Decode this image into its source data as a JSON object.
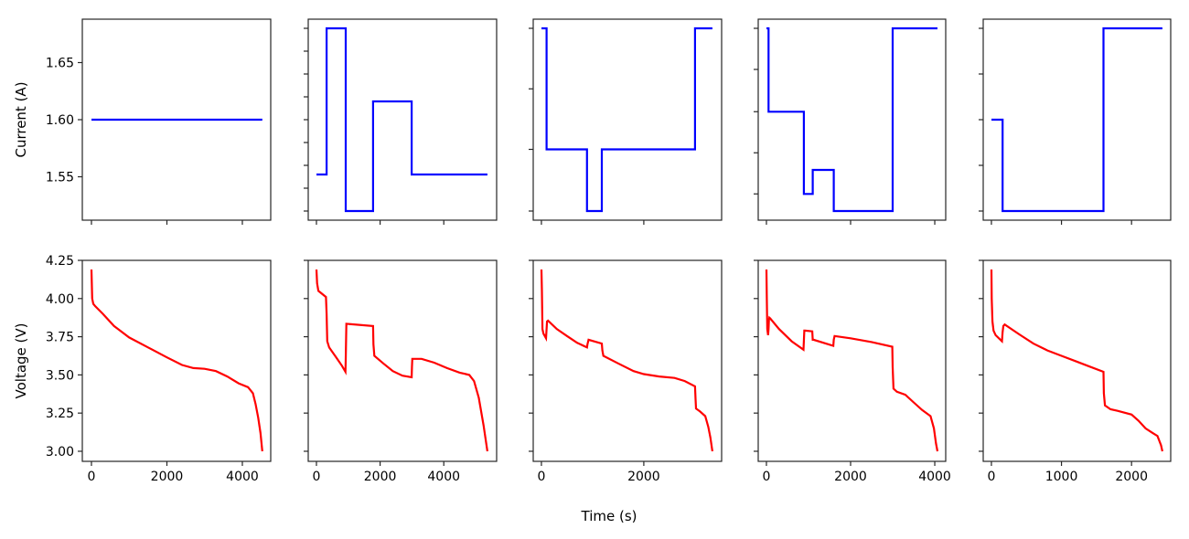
{
  "figure": {
    "xlabel": "Time (s)",
    "row_labels": [
      "Current (A)",
      "Voltage (V)"
    ],
    "colors": {
      "current": "#0000ff",
      "voltage": "#ff0000",
      "axes": "#262626",
      "background": "#ffffff"
    }
  },
  "chart_data": [
    {
      "type": "line",
      "panel": "current-1",
      "title": "",
      "xlabel": "",
      "ylabel": "Current (A)",
      "xlim": [
        -242,
        4752
      ],
      "ylim": [
        1.512,
        1.688
      ],
      "xticks": [
        0,
        2000,
        4000
      ],
      "xtick_labels": [
        "",
        "",
        ""
      ],
      "yticks": [
        1.55,
        1.6,
        1.65
      ],
      "ytick_labels": [
        "1.55",
        "1.60",
        "1.65"
      ],
      "series": [
        {
          "name": "Current",
          "color": "#0000ff",
          "step": true,
          "x": [
            0,
            4530
          ],
          "y": [
            1.6,
            1.6
          ]
        }
      ]
    },
    {
      "type": "line",
      "panel": "current-2",
      "title": "",
      "xlabel": "",
      "ylabel": "",
      "xlim": [
        -258,
        5660
      ],
      "ylim": [
        1.512,
        1.688
      ],
      "xticks": [
        0,
        2000,
        4000
      ],
      "xtick_labels": [
        "",
        "",
        ""
      ],
      "yticks": [
        1.52,
        1.54,
        1.56,
        1.58,
        1.6,
        1.62,
        1.64,
        1.66,
        1.68
      ],
      "ytick_labels": [
        "",
        "",
        "",
        "",
        "",
        "",
        "",
        "",
        ""
      ],
      "series": [
        {
          "name": "Current",
          "color": "#0000ff",
          "step": true,
          "x": [
            0,
            320,
            320,
            920,
            920,
            1780,
            1780,
            2990,
            2990,
            5370
          ],
          "y": [
            1.552,
            1.552,
            1.68,
            1.68,
            1.52,
            1.52,
            1.616,
            1.616,
            1.552,
            1.552
          ]
        }
      ]
    },
    {
      "type": "line",
      "panel": "current-3",
      "title": "",
      "xlabel": "",
      "ylabel": "",
      "xlim": [
        -160,
        3520
      ],
      "ylim": [
        1.512,
        1.688
      ],
      "xticks": [
        0,
        2000
      ],
      "xtick_labels": [
        "",
        ""
      ],
      "yticks": [
        1.52,
        1.574,
        1.627,
        1.68
      ],
      "ytick_labels": [
        "",
        "",
        "",
        ""
      ],
      "series": [
        {
          "name": "Current",
          "color": "#0000ff",
          "step": true,
          "x": [
            0,
            100,
            100,
            890,
            890,
            1180,
            1180,
            3000,
            3000,
            3340
          ],
          "y": [
            1.68,
            1.68,
            1.574,
            1.574,
            1.52,
            1.52,
            1.574,
            1.574,
            1.68,
            1.68
          ]
        }
      ]
    },
    {
      "type": "line",
      "panel": "current-4",
      "title": "",
      "xlabel": "",
      "ylabel": "",
      "xlim": [
        -195,
        4260
      ],
      "ylim": [
        1.512,
        1.688
      ],
      "xticks": [
        0,
        2000,
        4000
      ],
      "xtick_labels": [
        "",
        "",
        ""
      ],
      "yticks": [
        1.535,
        1.571,
        1.607,
        1.644,
        1.68
      ],
      "ytick_labels": [
        "",
        "",
        "",
        "",
        ""
      ],
      "series": [
        {
          "name": "Current",
          "color": "#0000ff",
          "step": true,
          "x": [
            0,
            50,
            50,
            890,
            890,
            1100,
            1100,
            1600,
            1600,
            3000,
            3000,
            4065
          ],
          "y": [
            1.68,
            1.68,
            1.607,
            1.607,
            1.535,
            1.535,
            1.556,
            1.556,
            1.52,
            1.52,
            1.68,
            1.68
          ]
        }
      ]
    },
    {
      "type": "line",
      "panel": "current-5",
      "title": "",
      "xlabel": "",
      "ylabel": "",
      "xlim": [
        -117,
        2559
      ],
      "ylim": [
        1.512,
        1.688
      ],
      "xticks": [
        0,
        1000,
        2000
      ],
      "xtick_labels": [
        "",
        "",
        ""
      ],
      "yticks": [
        1.52,
        1.56,
        1.6,
        1.64,
        1.68
      ],
      "ytick_labels": [
        "",
        "",
        "",
        "",
        ""
      ],
      "series": [
        {
          "name": "Current",
          "color": "#0000ff",
          "step": true,
          "x": [
            0,
            160,
            160,
            1600,
            1600,
            2440
          ],
          "y": [
            1.6,
            1.6,
            1.52,
            1.52,
            1.68,
            1.68
          ]
        }
      ]
    },
    {
      "type": "line",
      "panel": "voltage-1",
      "title": "",
      "xlabel": "",
      "ylabel": "Voltage (V)",
      "xlim": [
        -242,
        4752
      ],
      "ylim": [
        2.934,
        4.25
      ],
      "xticks": [
        0,
        2000,
        4000
      ],
      "xtick_labels": [
        "0",
        "2000",
        "4000"
      ],
      "yticks": [
        3.0,
        3.25,
        3.5,
        3.75,
        4.0,
        4.25
      ],
      "ytick_labels": [
        "3.00",
        "3.25",
        "3.50",
        "3.75",
        "4.00",
        "4.25"
      ],
      "series": [
        {
          "name": "Voltage",
          "color": "#ff0000",
          "x": [
            0,
            20,
            50,
            100,
            300,
            600,
            1000,
            1500,
            2000,
            2400,
            2700,
            3000,
            3300,
            3600,
            3900,
            4150,
            4280,
            4350,
            4420,
            4480,
            4530
          ],
          "y": [
            4.19,
            4.0,
            3.965,
            3.95,
            3.9,
            3.82,
            3.745,
            3.68,
            3.615,
            3.565,
            3.545,
            3.54,
            3.525,
            3.49,
            3.445,
            3.42,
            3.38,
            3.31,
            3.22,
            3.12,
            3.0
          ]
        }
      ]
    },
    {
      "type": "line",
      "panel": "voltage-2",
      "title": "",
      "xlabel": "",
      "ylabel": "",
      "xlim": [
        -258,
        5660
      ],
      "ylim": [
        2.934,
        4.25
      ],
      "xticks": [
        0,
        2000,
        4000
      ],
      "xtick_labels": [
        "0",
        "2000",
        "4000"
      ],
      "yticks": [
        3.0,
        3.25,
        3.5,
        3.75,
        4.0,
        4.25
      ],
      "ytick_labels": [
        "",
        "",
        "",
        "",
        "",
        ""
      ],
      "series": [
        {
          "name": "Voltage",
          "color": "#ff0000",
          "x": [
            0,
            20,
            60,
            300,
            320,
            340,
            400,
            600,
            800,
            910,
            920,
            940,
            1780,
            1790,
            1820,
            2100,
            2400,
            2700,
            2990,
            3000,
            3010,
            3300,
            3700,
            4100,
            4500,
            4800,
            4950,
            5100,
            5250,
            5370
          ],
          "y": [
            4.19,
            4.1,
            4.05,
            4.01,
            3.9,
            3.72,
            3.68,
            3.62,
            3.56,
            3.52,
            3.6,
            3.835,
            3.82,
            3.7,
            3.625,
            3.575,
            3.525,
            3.495,
            3.485,
            3.55,
            3.605,
            3.605,
            3.58,
            3.545,
            3.515,
            3.5,
            3.46,
            3.35,
            3.17,
            3.0
          ]
        }
      ]
    },
    {
      "type": "line",
      "panel": "voltage-3",
      "title": "",
      "xlabel": "",
      "ylabel": "",
      "xlim": [
        -160,
        3520
      ],
      "ylim": [
        2.934,
        4.25
      ],
      "xticks": [
        0,
        2000
      ],
      "xtick_labels": [
        "0",
        "2000"
      ],
      "yticks": [
        3.0,
        3.25,
        3.5,
        3.75,
        4.0,
        4.25
      ],
      "ytick_labels": [
        "",
        "",
        "",
        "",
        "",
        ""
      ],
      "series": [
        {
          "name": "Voltage",
          "color": "#ff0000",
          "x": [
            0,
            10,
            20,
            40,
            90,
            100,
            110,
            130,
            300,
            500,
            700,
            890,
            900,
            920,
            1180,
            1190,
            1210,
            1500,
            1800,
            2000,
            2300,
            2600,
            2800,
            3000,
            3010,
            3020,
            3100,
            3200,
            3260,
            3300,
            3340
          ],
          "y": [
            4.19,
            4.05,
            3.8,
            3.77,
            3.74,
            3.8,
            3.85,
            3.855,
            3.8,
            3.755,
            3.71,
            3.68,
            3.7,
            3.73,
            3.705,
            3.66,
            3.625,
            3.575,
            3.525,
            3.505,
            3.49,
            3.48,
            3.46,
            3.425,
            3.34,
            3.28,
            3.26,
            3.23,
            3.16,
            3.09,
            3.0
          ]
        }
      ]
    },
    {
      "type": "line",
      "panel": "voltage-4",
      "title": "",
      "xlabel": "",
      "ylabel": "",
      "xlim": [
        -195,
        4260
      ],
      "ylim": [
        2.934,
        4.25
      ],
      "xticks": [
        0,
        2000,
        4000
      ],
      "xtick_labels": [
        "0",
        "2000",
        "4000"
      ],
      "yticks": [
        3.0,
        3.25,
        3.5,
        3.75,
        4.0,
        4.25
      ],
      "ytick_labels": [
        "",
        "",
        "",
        "",
        "",
        ""
      ],
      "series": [
        {
          "name": "Voltage",
          "color": "#ff0000",
          "x": [
            0,
            10,
            20,
            40,
            50,
            60,
            70,
            90,
            300,
            600,
            880,
            890,
            900,
            920,
            1090,
            1100,
            1120,
            1590,
            1600,
            1620,
            2000,
            2500,
            2990,
            3000,
            3020,
            3100,
            3300,
            3500,
            3700,
            3900,
            3980,
            4030,
            4065
          ],
          "y": [
            4.19,
            4.0,
            3.8,
            3.76,
            3.8,
            3.86,
            3.875,
            3.87,
            3.8,
            3.72,
            3.665,
            3.72,
            3.79,
            3.79,
            3.785,
            3.73,
            3.73,
            3.69,
            3.73,
            3.755,
            3.74,
            3.715,
            3.685,
            3.55,
            3.41,
            3.39,
            3.37,
            3.32,
            3.27,
            3.23,
            3.15,
            3.05,
            3.0
          ]
        }
      ]
    },
    {
      "type": "line",
      "panel": "voltage-5",
      "title": "",
      "xlabel": "",
      "ylabel": "",
      "xlim": [
        -117,
        2559
      ],
      "ylim": [
        2.934,
        4.25
      ],
      "xticks": [
        0,
        1000,
        2000
      ],
      "xtick_labels": [
        "0",
        "1000",
        "2000"
      ],
      "yticks": [
        3.0,
        3.25,
        3.5,
        3.75,
        4.0,
        4.25
      ],
      "ytick_labels": [
        "",
        "",
        "",
        "",
        "",
        ""
      ],
      "series": [
        {
          "name": "Voltage",
          "color": "#ff0000",
          "x": [
            0,
            5,
            15,
            30,
            60,
            150,
            160,
            170,
            190,
            400,
            600,
            800,
            1000,
            1200,
            1400,
            1600,
            1605,
            1620,
            1700,
            1800,
            2000,
            2100,
            2200,
            2300,
            2370,
            2420,
            2440
          ],
          "y": [
            4.19,
            4.0,
            3.85,
            3.79,
            3.76,
            3.72,
            3.78,
            3.82,
            3.83,
            3.765,
            3.705,
            3.66,
            3.625,
            3.59,
            3.555,
            3.52,
            3.38,
            3.3,
            3.275,
            3.265,
            3.24,
            3.2,
            3.15,
            3.12,
            3.1,
            3.04,
            3.0
          ]
        }
      ]
    }
  ]
}
